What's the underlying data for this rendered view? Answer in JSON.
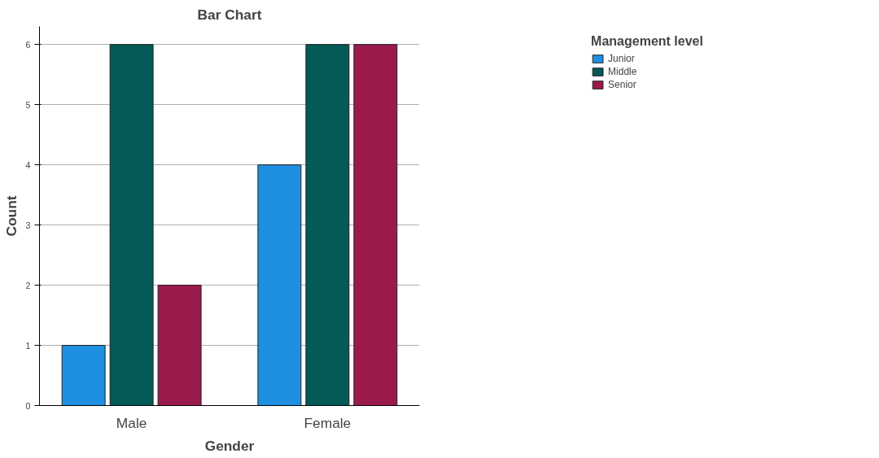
{
  "chart_data": {
    "type": "bar",
    "title": "Bar Chart",
    "xlabel": "Gender",
    "ylabel": "Count",
    "legend_title": "Management level",
    "categories": [
      "Male",
      "Female"
    ],
    "series": [
      {
        "name": "Junior",
        "color": "#1e8fe1",
        "values": [
          1,
          4
        ]
      },
      {
        "name": "Middle",
        "color": "#035a56",
        "values": [
          6,
          6
        ]
      },
      {
        "name": "Senior",
        "color": "#9b1a4c",
        "values": [
          2,
          6
        ]
      }
    ],
    "ylim": [
      0,
      6.3
    ],
    "yticks": [
      0,
      1,
      2,
      3,
      4,
      5,
      6
    ],
    "grid": "y",
    "legend": "top right"
  }
}
